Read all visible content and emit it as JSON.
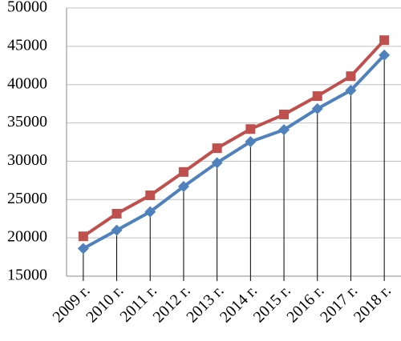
{
  "chart_data": {
    "type": "line",
    "categories": [
      "2009 г.",
      "2010 г.",
      "2011 г.",
      "2012 г.",
      "2013 г.",
      "2014 г.",
      "2015 г.",
      "2016 г.",
      "2017 г.",
      "2018 г."
    ],
    "series": [
      {
        "color": "#4f81bd",
        "marker": "diamond",
        "values": [
          18600,
          21000,
          23400,
          26700,
          29800,
          32550,
          34100,
          36850,
          39250,
          43850
        ]
      },
      {
        "color": "#c0504d",
        "marker": "square",
        "values": [
          20200,
          23150,
          25550,
          28600,
          31700,
          34200,
          36100,
          38500,
          41100,
          45800
        ]
      }
    ],
    "drop_lines": true,
    "ylim": [
      15000,
      50000
    ],
    "yticks": [
      15000,
      20000,
      25000,
      30000,
      35000,
      40000,
      45000,
      50000
    ],
    "grid": true
  }
}
